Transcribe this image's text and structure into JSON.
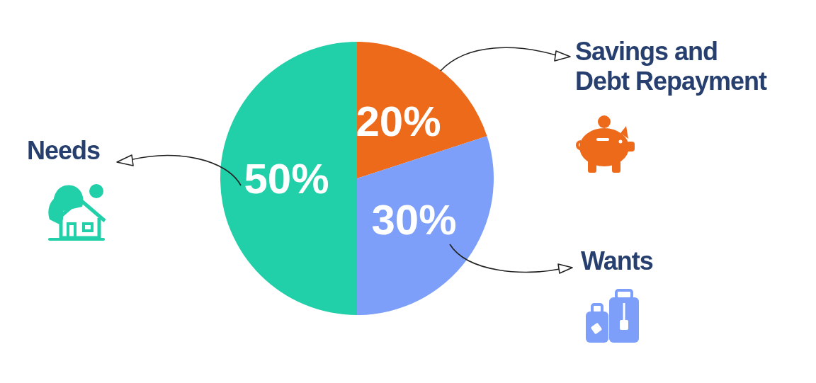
{
  "chart_data": {
    "type": "pie",
    "categories": [
      "Savings and Debt Repayment",
      "Wants",
      "Needs"
    ],
    "values": [
      20,
      30,
      50
    ],
    "colors": [
      "#ed6a1a",
      "#7d9ff9",
      "#21cfa9"
    ],
    "value_labels": [
      "20%",
      "30%",
      "50%"
    ]
  }
}
